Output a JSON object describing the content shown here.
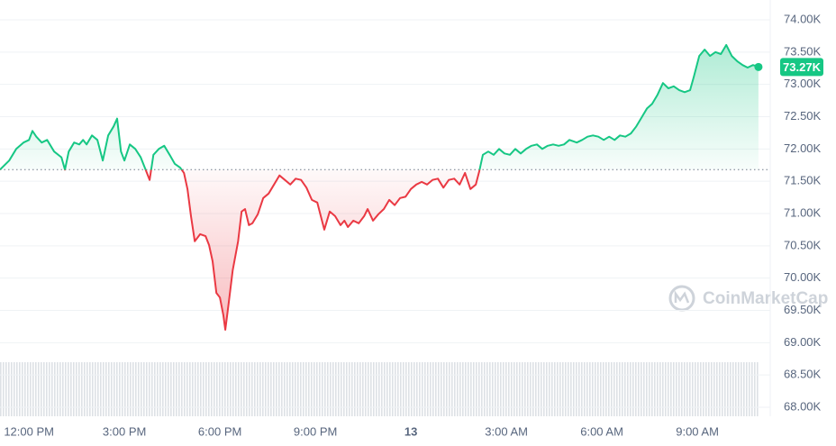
{
  "chart_data": {
    "type": "line",
    "x": [
      -0.91,
      -0.62,
      -0.4,
      -0.17,
      0,
      0.11,
      0.23,
      0.4,
      0.57,
      0.79,
      1.02,
      1.13,
      1.25,
      1.42,
      1.58,
      1.7,
      1.81,
      1.98,
      2.15,
      2.32,
      2.49,
      2.66,
      2.77,
      2.89,
      3.0,
      3.17,
      3.34,
      3.51,
      3.68,
      3.79,
      3.91,
      4.08,
      4.25,
      4.42,
      4.58,
      4.75,
      4.87,
      4.98,
      5.09,
      5.21,
      5.38,
      5.55,
      5.66,
      5.77,
      5.89,
      6.0,
      6.11,
      6.17,
      6.28,
      6.4,
      6.57,
      6.68,
      6.79,
      6.91,
      7.02,
      7.19,
      7.36,
      7.53,
      7.7,
      7.87,
      8.04,
      8.21,
      8.38,
      8.55,
      8.72,
      8.89,
      9.06,
      9.17,
      9.28,
      9.45,
      9.62,
      9.79,
      9.91,
      10.02,
      10.19,
      10.36,
      10.53,
      10.64,
      10.81,
      10.98,
      11.15,
      11.32,
      11.49,
      11.66,
      11.83,
      12.0,
      12.17,
      12.34,
      12.51,
      12.68,
      12.85,
      13.02,
      13.19,
      13.36,
      13.53,
      13.7,
      13.87,
      14.04,
      14.15,
      14.26,
      14.43,
      14.6,
      14.77,
      14.94,
      15.11,
      15.28,
      15.45,
      15.62,
      15.79,
      15.96,
      16.13,
      16.3,
      16.47,
      16.64,
      16.81,
      16.98,
      17.21,
      17.38,
      17.55,
      17.72,
      17.89,
      18.06,
      18.23,
      18.4,
      18.57,
      18.74,
      18.91,
      19.08,
      19.25,
      19.42,
      19.58,
      19.75,
      19.92,
      20.09,
      20.26,
      20.43,
      20.6,
      20.77,
      20.89,
      21.06,
      21.23,
      21.4,
      21.57,
      21.74,
      21.91,
      22.08,
      22.25,
      22.42,
      22.58,
      22.75,
      22.92
    ],
    "values": [
      71680,
      71820,
      72000,
      72100,
      72140,
      72280,
      72190,
      72100,
      72140,
      71960,
      71870,
      71680,
      71960,
      72100,
      72070,
      72140,
      72070,
      72210,
      72140,
      71820,
      72210,
      72350,
      72470,
      71960,
      71820,
      72070,
      72000,
      71870,
      71660,
      71520,
      71910,
      72000,
      72050,
      71910,
      71770,
      71710,
      71630,
      71380,
      70960,
      70570,
      70680,
      70650,
      70510,
      70260,
      69770,
      69700,
      69420,
      69200,
      69630,
      70120,
      70570,
      71030,
      71070,
      70820,
      70850,
      70990,
      71240,
      71310,
      71450,
      71590,
      71520,
      71450,
      71540,
      71520,
      71400,
      71210,
      71170,
      70960,
      70750,
      71030,
      70960,
      70820,
      70890,
      70790,
      70890,
      70850,
      70960,
      71070,
      70890,
      70990,
      71070,
      71210,
      71130,
      71240,
      71260,
      71380,
      71450,
      71490,
      71450,
      71520,
      71540,
      71400,
      71520,
      71540,
      71450,
      71630,
      71380,
      71450,
      71660,
      71910,
      71960,
      71910,
      72000,
      71930,
      71910,
      72000,
      71930,
      72000,
      72050,
      72070,
      72000,
      72050,
      72070,
      72050,
      72070,
      72140,
      72100,
      72140,
      72190,
      72210,
      72190,
      72140,
      72190,
      72140,
      72210,
      72190,
      72240,
      72350,
      72490,
      72630,
      72700,
      72840,
      73020,
      72940,
      72970,
      72910,
      72880,
      72910,
      73120,
      73440,
      73540,
      73440,
      73500,
      73470,
      73610,
      73440,
      73360,
      73300,
      73260,
      73300,
      73270
    ],
    "baseline": 71680,
    "up_color": "#16c784",
    "down_color": "#ea3943",
    "last_label": "73.27K",
    "watermark": "CoinMarketCap",
    "xlim": [
      -0.91,
      23.29
    ],
    "xticks": [
      {
        "value": 0,
        "label": "12:00 PM"
      },
      {
        "value": 3,
        "label": "3:00 PM"
      },
      {
        "value": 6,
        "label": "6:00 PM"
      },
      {
        "value": 9,
        "label": "9:00 PM"
      },
      {
        "value": 12,
        "label": "13"
      },
      {
        "value": 15,
        "label": "3:00 AM"
      },
      {
        "value": 18,
        "label": "6:00 AM"
      },
      {
        "value": 21,
        "label": "9:00 AM"
      }
    ],
    "ylim": [
      68000,
      74000
    ],
    "yticks": [
      {
        "value": 68000,
        "label": "68.00K"
      },
      {
        "value": 68500,
        "label": "68.50K"
      },
      {
        "value": 69000,
        "label": "69.00K"
      },
      {
        "value": 69500,
        "label": "69.50K"
      },
      {
        "value": 70000,
        "label": "70.00K"
      },
      {
        "value": 70500,
        "label": "70.50K"
      },
      {
        "value": 71000,
        "label": "71.00K"
      },
      {
        "value": 71500,
        "label": "71.50K"
      },
      {
        "value": 72000,
        "label": "72.00K"
      },
      {
        "value": 72500,
        "label": "72.50K"
      },
      {
        "value": 73000,
        "label": "73.00K"
      },
      {
        "value": 73500,
        "label": "73.50K"
      },
      {
        "value": 74000,
        "label": "74.00K"
      }
    ],
    "grid": true
  }
}
